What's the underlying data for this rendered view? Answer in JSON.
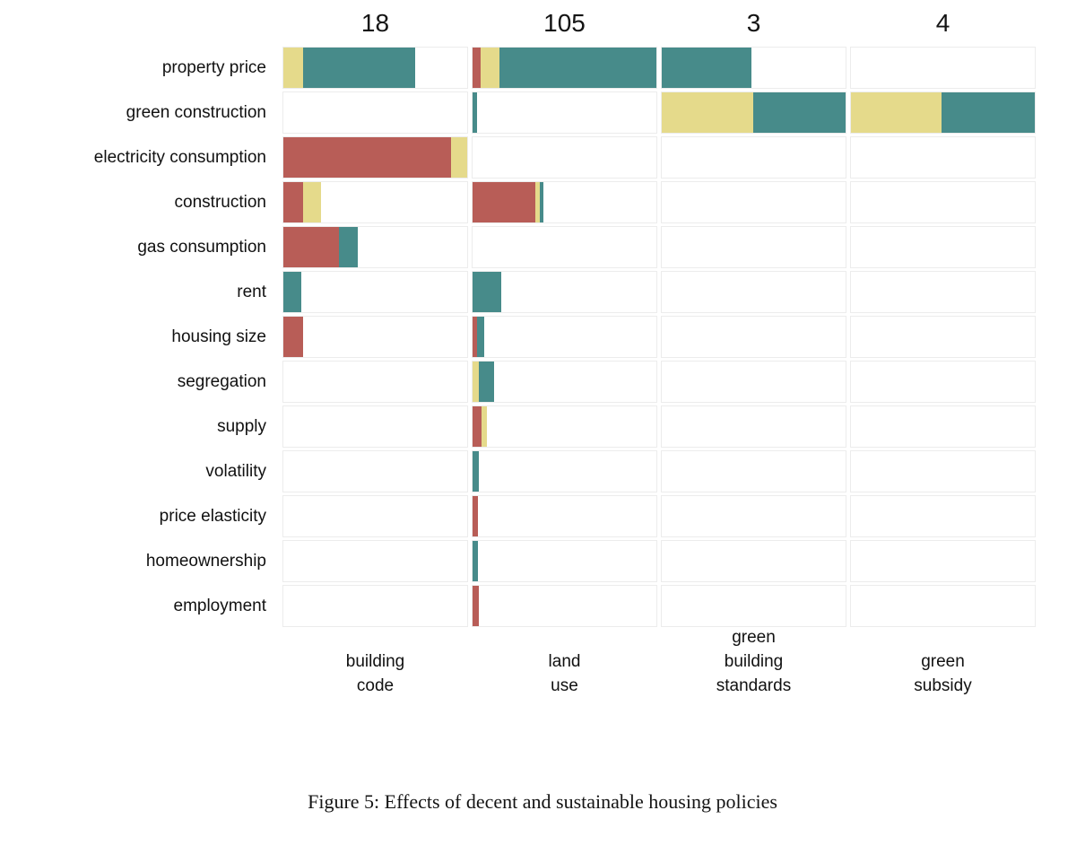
{
  "figure": {
    "caption": "Figure 5: Effects of decent and sustainable housing policies"
  },
  "colors": {
    "teal": "#478b8a",
    "yellow": "#e5da8b",
    "red": "#b85d57",
    "cell_border": "#ececec",
    "text": "#0a0a0a"
  },
  "chart_data": {
    "type": "bar",
    "variant": "horizontal stacked bars in a 13-row by 4-facet grid, free x scale per facet, no legend shown",
    "unit_note": "pct = segment width as percent of facet panel width; paper_count is the number printed above each facet",
    "facets": [
      {
        "id": "building-code",
        "paper_count": "18",
        "label_lines": [
          "building",
          "code"
        ]
      },
      {
        "id": "land-use",
        "paper_count": "105",
        "label_lines": [
          "land",
          "use"
        ]
      },
      {
        "id": "green-building-standards",
        "paper_count": "3",
        "label_lines": [
          "green",
          "building",
          "standards"
        ]
      },
      {
        "id": "green-subsidy",
        "paper_count": "4",
        "label_lines": [
          "green",
          "subsidy"
        ]
      }
    ],
    "categories": [
      "property price",
      "green construction",
      "electricity consumption",
      "construction",
      "gas consumption",
      "rent",
      "housing size",
      "segregation",
      "supply",
      "volatility",
      "price elasticity",
      "homeownership",
      "employment"
    ],
    "rows": [
      {
        "label": "property price",
        "bars": [
          [
            {
              "color": "yellow",
              "pct": 10.6
            },
            {
              "color": "teal",
              "pct": 60.9
            }
          ],
          [
            {
              "color": "red",
              "pct": 4.3
            },
            {
              "color": "yellow",
              "pct": 10.1
            },
            {
              "color": "teal",
              "pct": 85.6
            }
          ],
          [
            {
              "color": "teal",
              "pct": 48.8
            }
          ],
          []
        ]
      },
      {
        "label": "green construction",
        "bars": [
          [],
          [
            {
              "color": "teal",
              "pct": 2.2
            }
          ],
          [
            {
              "color": "yellow",
              "pct": 49.8
            },
            {
              "color": "teal",
              "pct": 50.2
            }
          ],
          [
            {
              "color": "yellow",
              "pct": 49.3
            },
            {
              "color": "teal",
              "pct": 50.7
            }
          ]
        ]
      },
      {
        "label": "electricity consumption",
        "bars": [
          [
            {
              "color": "red",
              "pct": 91.3
            },
            {
              "color": "yellow",
              "pct": 8.7
            }
          ],
          [],
          [],
          []
        ]
      },
      {
        "label": "construction",
        "bars": [
          [
            {
              "color": "red",
              "pct": 10.6
            },
            {
              "color": "yellow",
              "pct": 10.1
            }
          ],
          [
            {
              "color": "red",
              "pct": 34.0
            },
            {
              "color": "yellow",
              "pct": 2.4
            },
            {
              "color": "teal",
              "pct": 2.2
            }
          ],
          [],
          []
        ]
      },
      {
        "label": "gas consumption",
        "bars": [
          [
            {
              "color": "red",
              "pct": 30.4
            },
            {
              "color": "teal",
              "pct": 10.1
            }
          ],
          [],
          [],
          []
        ]
      },
      {
        "label": "rent",
        "bars": [
          [
            {
              "color": "teal",
              "pct": 9.7
            }
          ],
          [
            {
              "color": "teal",
              "pct": 15.5
            }
          ],
          [],
          []
        ]
      },
      {
        "label": "housing size",
        "bars": [
          [
            {
              "color": "red",
              "pct": 10.6
            }
          ],
          [
            {
              "color": "red",
              "pct": 2.2
            },
            {
              "color": "teal",
              "pct": 4.3
            }
          ],
          [],
          []
        ]
      },
      {
        "label": "segregation",
        "bars": [
          [],
          [
            {
              "color": "yellow",
              "pct": 3.4
            },
            {
              "color": "teal",
              "pct": 8.2
            }
          ],
          [],
          []
        ]
      },
      {
        "label": "supply",
        "bars": [
          [],
          [
            {
              "color": "red",
              "pct": 4.8
            },
            {
              "color": "yellow",
              "pct": 2.9
            }
          ],
          [],
          []
        ]
      },
      {
        "label": "volatility",
        "bars": [
          [],
          [
            {
              "color": "teal",
              "pct": 3.4
            }
          ],
          [],
          []
        ]
      },
      {
        "label": "price elasticity",
        "bars": [
          [],
          [
            {
              "color": "red",
              "pct": 2.9
            }
          ],
          [],
          []
        ]
      },
      {
        "label": "homeownership",
        "bars": [
          [],
          [
            {
              "color": "teal",
              "pct": 2.9
            }
          ],
          [],
          []
        ]
      },
      {
        "label": "employment",
        "bars": [
          [],
          [
            {
              "color": "red",
              "pct": 3.4
            }
          ],
          [],
          []
        ]
      }
    ]
  }
}
